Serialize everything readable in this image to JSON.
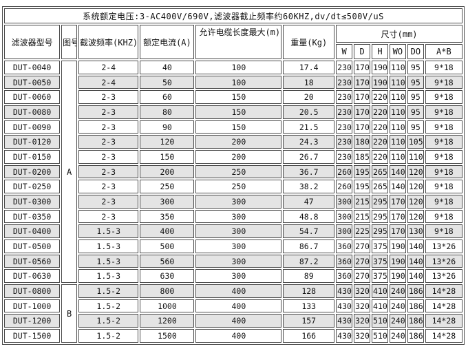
{
  "title_bar": "系统额定电压:3-AC400V/690V,滤波器截止频率约60KHZ,dv/dt≤500V/uS",
  "columns": {
    "model": "滤波器型号",
    "figure": "图号",
    "chop_freq": "截波频率(KHZ)",
    "rated_current": "额定电流(A)",
    "cable_len": "允许电缆长度最大(m)",
    "weight": "重量(Kg)",
    "dims": "尺寸(mm)",
    "dim_sub": [
      "W",
      "D",
      "H",
      "WO",
      "DO",
      "A*B"
    ]
  },
  "figure_groups": [
    {
      "label": "A",
      "rows": 15
    },
    {
      "label": "B",
      "rows": 4
    }
  ],
  "rows": [
    [
      "DUT-0040",
      "2-4",
      "40",
      "100",
      "17.4",
      "230",
      "170",
      "190",
      "110",
      "95",
      "9*18"
    ],
    [
      "DUT-0050",
      "2-4",
      "50",
      "100",
      "18",
      "230",
      "170",
      "190",
      "110",
      "95",
      "9*18"
    ],
    [
      "DUT-0060",
      "2-3",
      "60",
      "150",
      "20",
      "230",
      "170",
      "220",
      "110",
      "95",
      "9*18"
    ],
    [
      "DUT-0080",
      "2-3",
      "80",
      "150",
      "20.5",
      "230",
      "170",
      "220",
      "110",
      "95",
      "9*18"
    ],
    [
      "DUT-0090",
      "2-3",
      "90",
      "150",
      "21.5",
      "230",
      "170",
      "220",
      "110",
      "95",
      "9*18"
    ],
    [
      "DUT-0120",
      "2-3",
      "120",
      "200",
      "24.3",
      "230",
      "180",
      "220",
      "110",
      "105",
      "9*18"
    ],
    [
      "DUT-0150",
      "2-3",
      "150",
      "200",
      "26.7",
      "230",
      "185",
      "220",
      "110",
      "110",
      "9*18"
    ],
    [
      "DUT-0200",
      "2-3",
      "200",
      "250",
      "36.7",
      "260",
      "195",
      "265",
      "140",
      "120",
      "9*18"
    ],
    [
      "DUT-0250",
      "2-3",
      "250",
      "250",
      "38.2",
      "260",
      "195",
      "265",
      "140",
      "120",
      "9*18"
    ],
    [
      "DUT-0300",
      "2-3",
      "300",
      "300",
      "47",
      "300",
      "215",
      "295",
      "170",
      "120",
      "9*18"
    ],
    [
      "DUT-0350",
      "2-3",
      "350",
      "300",
      "48.8",
      "300",
      "215",
      "295",
      "170",
      "120",
      "9*18"
    ],
    [
      "DUT-0400",
      "1.5-3",
      "400",
      "300",
      "54.7",
      "300",
      "225",
      "295",
      "170",
      "130",
      "9*18"
    ],
    [
      "DUT-0500",
      "1.5-3",
      "500",
      "300",
      "86.7",
      "360",
      "270",
      "375",
      "190",
      "140",
      "13*26"
    ],
    [
      "DUT-0560",
      "1.5-3",
      "560",
      "300",
      "87.2",
      "360",
      "270",
      "375",
      "190",
      "140",
      "13*26"
    ],
    [
      "DUT-0630",
      "1.5-3",
      "630",
      "300",
      "89",
      "360",
      "270",
      "375",
      "190",
      "140",
      "13*26"
    ],
    [
      "DUT-0800",
      "1.5-2",
      "800",
      "400",
      "128",
      "430",
      "320",
      "410",
      "240",
      "186",
      "14*28"
    ],
    [
      "DUT-1000",
      "1.5-2",
      "1000",
      "400",
      "133",
      "430",
      "320",
      "410",
      "240",
      "186",
      "14*28"
    ],
    [
      "DUT-1200",
      "1.5-2",
      "1200",
      "400",
      "157",
      "430",
      "320",
      "510",
      "240",
      "186",
      "14*28"
    ],
    [
      "DUT-1500",
      "1.5-2",
      "1500",
      "400",
      "166",
      "430",
      "320",
      "510",
      "240",
      "186",
      "14*28"
    ]
  ],
  "colors": {
    "stripe": "#e4e4e4",
    "border": "#4a4a4a",
    "background": "#ffffff"
  }
}
